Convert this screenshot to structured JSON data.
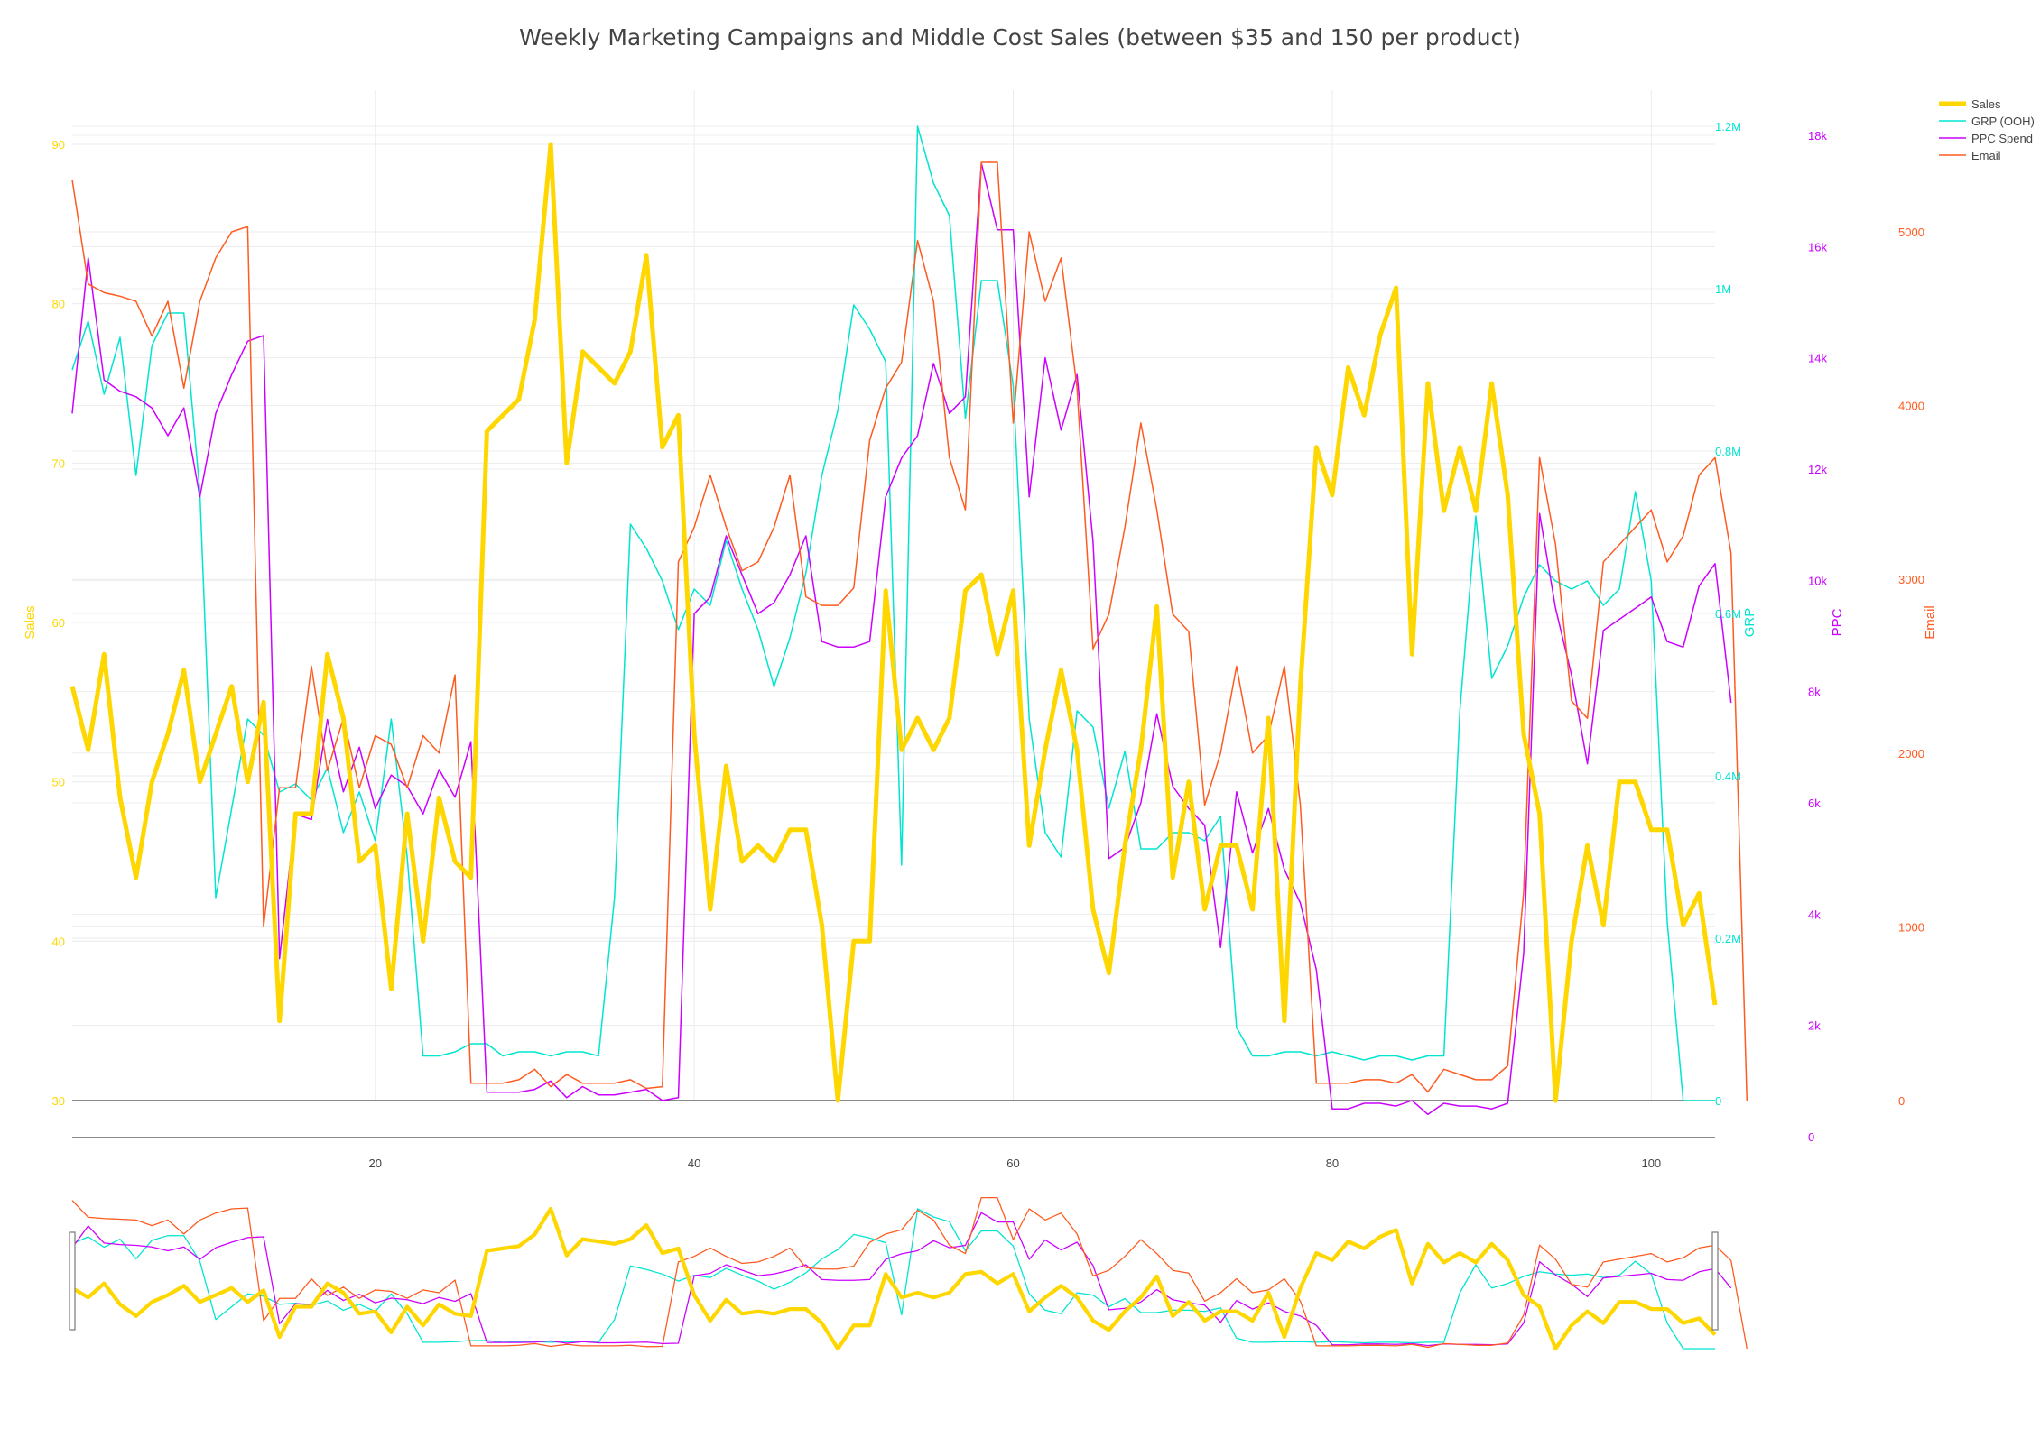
{
  "chart_data": {
    "type": "line",
    "title": "Weekly Marketing Campaigns and Middle Cost Sales (between $35 and 150 per product)",
    "x_ticks": [
      20,
      40,
      60,
      80,
      100
    ],
    "xlim": [
      1,
      104
    ],
    "grid": true,
    "legend_position": "top-right",
    "range_slider": true,
    "axes": {
      "sales": {
        "title": "Sales",
        "side": "left",
        "range": [
          30,
          90
        ],
        "ticks": [
          30,
          40,
          50,
          60,
          70,
          80,
          90
        ],
        "tick_labels": [
          "30",
          "40",
          "50",
          "60",
          "70",
          "80",
          "90"
        ],
        "color": "#FFD700"
      },
      "grp": {
        "title": "GRP",
        "side": "right",
        "range": [
          0,
          1200000
        ],
        "ticks": [
          0,
          200000,
          400000,
          600000,
          800000,
          1000000,
          1200000
        ],
        "tick_labels": [
          "0",
          "0.2M",
          "0.4M",
          "0.6M",
          "0.8M",
          "1M",
          "1.2M"
        ],
        "color": "#00E5D0"
      },
      "ppc": {
        "title": "PPC",
        "side": "right",
        "range": [
          0,
          18000
        ],
        "ticks": [
          0,
          2000,
          4000,
          6000,
          8000,
          10000,
          12000,
          14000,
          16000,
          18000
        ],
        "tick_labels": [
          "0",
          "2k",
          "4k",
          "6k",
          "8k",
          "10k",
          "12k",
          "14k",
          "16k",
          "18k"
        ],
        "color": "#CC00FF"
      },
      "email": {
        "title": "Email",
        "side": "right",
        "range": [
          0,
          5000
        ],
        "ticks": [
          0,
          1000,
          2000,
          3000,
          4000,
          5000
        ],
        "tick_labels": [
          "0",
          "1000",
          "2000",
          "3000",
          "4000",
          "5000"
        ],
        "color": "#FF5A1F"
      }
    },
    "series": [
      {
        "name": "Sales",
        "axis": "sales",
        "color": "#FFD700",
        "width": 5,
        "values": [
          56,
          52,
          58,
          49,
          44,
          50,
          53,
          57,
          50,
          53,
          56,
          50,
          55,
          35,
          48,
          48,
          58,
          54,
          45,
          46,
          37,
          48,
          40,
          49,
          45,
          44,
          72,
          73,
          74,
          79,
          90,
          70,
          77,
          76,
          75,
          77,
          83,
          71,
          73,
          53,
          42,
          51,
          45,
          46,
          45,
          47,
          47,
          41,
          30,
          40,
          40,
          62,
          52,
          54,
          52,
          54,
          62,
          63,
          58,
          62,
          46,
          52,
          57,
          52,
          42,
          38,
          46,
          52,
          61,
          44,
          50,
          42,
          46,
          46,
          42,
          54,
          35,
          56,
          71,
          68,
          76,
          73,
          78,
          81,
          58,
          75,
          67,
          71,
          67,
          75,
          68,
          53,
          48,
          30,
          40,
          46,
          41,
          50,
          50,
          47,
          47,
          41,
          43,
          36
        ]
      },
      {
        "name": "GRP (OOH)",
        "axis": "grp",
        "color": "#00E5D0",
        "width": 1.5,
        "values": [
          900000,
          960000,
          870000,
          940000,
          770000,
          930000,
          970000,
          970000,
          750000,
          250000,
          360000,
          470000,
          450000,
          380000,
          390000,
          370000,
          410000,
          330000,
          380000,
          320000,
          470000,
          300000,
          55000,
          55000,
          60000,
          70000,
          70000,
          55000,
          60000,
          60000,
          55000,
          60000,
          60000,
          55000,
          250000,
          710000,
          680000,
          640000,
          580000,
          630000,
          610000,
          690000,
          630000,
          580000,
          510000,
          570000,
          650000,
          770000,
          850000,
          980000,
          950000,
          910000,
          290000,
          1200000,
          1130000,
          1090000,
          840000,
          1010000,
          1010000,
          880000,
          470000,
          330000,
          300000,
          480000,
          460000,
          360000,
          430000,
          310000,
          310000,
          330000,
          330000,
          320000,
          350000,
          90000,
          55000,
          55000,
          60000,
          60000,
          55000,
          60000,
          55000,
          50000,
          55000,
          55000,
          50000,
          55000,
          55000,
          480000,
          720000,
          520000,
          560000,
          620000,
          660000,
          640000,
          630000,
          640000,
          610000,
          630000,
          750000,
          640000,
          220000,
          0,
          0,
          0
        ]
      },
      {
        "name": "PPC Spend",
        "axis": "ppc",
        "color": "#CC00FF",
        "width": 1.5,
        "values": [
          13000,
          15800,
          13600,
          13400,
          13300,
          13100,
          12600,
          13100,
          11500,
          13000,
          13700,
          14300,
          14400,
          3200,
          5800,
          5700,
          7500,
          6200,
          7000,
          5900,
          6500,
          6300,
          5800,
          6600,
          6100,
          7100,
          800,
          800,
          800,
          850,
          1000,
          700,
          900,
          750,
          750,
          800,
          850,
          650,
          700,
          9400,
          9700,
          10800,
          10100,
          9400,
          9600,
          10100,
          10800,
          8900,
          8800,
          8800,
          8900,
          11500,
          12200,
          12600,
          13900,
          13000,
          13300,
          17500,
          16300,
          16300,
          11500,
          14000,
          12700,
          13700,
          10700,
          5000,
          5200,
          6000,
          7600,
          6300,
          5900,
          5600,
          3400,
          6200,
          5100,
          5900,
          4800,
          4200,
          3000,
          500,
          500,
          600,
          600,
          550,
          650,
          400,
          600,
          550,
          550,
          500,
          600,
          3300,
          11200,
          9500,
          8300,
          6700,
          9100,
          9300,
          9500,
          9700,
          8900,
          8800,
          9900,
          10300,
          7800
        ]
      },
      {
        "name": "Email",
        "axis": "email",
        "color": "#FF5A1F",
        "width": 1.5,
        "values": [
          5300,
          4700,
          4650,
          4630,
          4600,
          4400,
          4600,
          4100,
          4600,
          4850,
          5000,
          5030,
          1000,
          1800,
          1800,
          2500,
          1900,
          2200,
          1800,
          2100,
          2050,
          1800,
          2100,
          2000,
          2450,
          100,
          100,
          100,
          120,
          180,
          80,
          150,
          100,
          100,
          100,
          120,
          70,
          80,
          3100,
          3300,
          3600,
          3300,
          3050,
          3100,
          3300,
          3600,
          2900,
          2850,
          2850,
          2950,
          3800,
          4100,
          4250,
          4950,
          4600,
          3700,
          3400,
          5400,
          5400,
          3900,
          5000,
          4600,
          4850,
          4100,
          2600,
          2800,
          3300,
          3900,
          3400,
          2800,
          2700,
          1700,
          2000,
          2500,
          2000,
          2100,
          2500,
          1700,
          100,
          100,
          100,
          120,
          120,
          100,
          150,
          50,
          180,
          150,
          120,
          120,
          200,
          1200,
          3700,
          3200,
          2300,
          2200,
          3100,
          3200,
          3300,
          3400,
          3100,
          3250,
          3600,
          3700,
          3150,
          0
        ]
      }
    ]
  }
}
